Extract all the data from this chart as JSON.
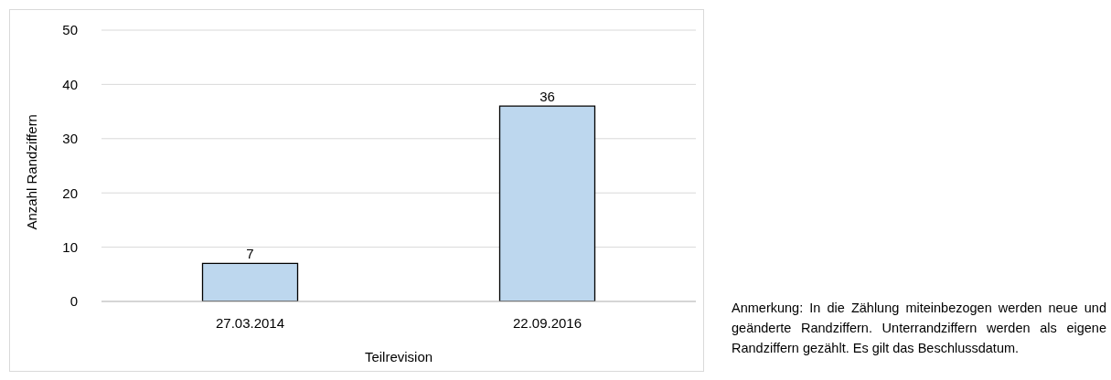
{
  "chart_data": {
    "type": "bar",
    "xlabel": "Teilrevision",
    "ylabel": "Anzahl Randziffern",
    "categories": [
      "27.03.2014",
      "22.09.2016"
    ],
    "values": [
      7,
      36
    ],
    "color": "#bdd7ee",
    "ylim": [
      0,
      50
    ],
    "yticks": [
      0,
      10,
      20,
      30,
      40,
      50
    ],
    "grid": "y",
    "data_labels": true,
    "legend": false,
    "annotations": [
      "Anmerkung: In die Zählung miteinbezogen werden neue und geänderte Randziffern. Unterrandziffern werden als eigene Randziffern gezählt. Es gilt das Beschlussdatum."
    ]
  }
}
